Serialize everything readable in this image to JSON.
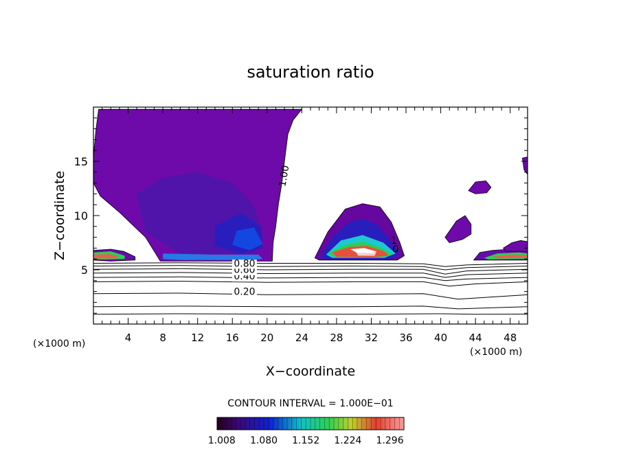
{
  "chart_data": {
    "type": "heatmap",
    "title": "saturation ratio",
    "xlabel": "X−coordinate",
    "ylabel": "Z−coordinate",
    "x_unit_left": "(×1000 m)",
    "x_unit_right": "(×1000 m)",
    "xlim": [
      0,
      50
    ],
    "ylim": [
      0,
      20
    ],
    "xticks": [
      4,
      8,
      12,
      16,
      20,
      24,
      28,
      32,
      36,
      40,
      44,
      48
    ],
    "yticks": [
      5,
      10,
      15
    ],
    "contour_interval_text": "CONTOUR INTERVAL = 1.000E−01",
    "colorbar": {
      "min": 1.0,
      "max": 1.32,
      "tick_values": [
        1.008,
        1.08,
        1.152,
        1.224,
        1.296
      ],
      "tick_labels": [
        "1.008",
        "1.080",
        "1.152",
        "1.224",
        "1.296"
      ]
    },
    "contour_labels": [
      {
        "text": "0.20",
        "x": 17.4,
        "y": 2.7
      },
      {
        "text": "0.40",
        "x": 17.4,
        "y": 4.1
      },
      {
        "text": "0.60",
        "x": 17.4,
        "y": 4.7
      },
      {
        "text": "0.80",
        "x": 17.4,
        "y": 5.3
      },
      {
        "text": "1.00",
        "x": 22.3,
        "y": 13.6
      },
      {
        "text": "1",
        "x": 34.6,
        "y": 7.4
      },
      {
        "text": "0",
        "x": 34.8,
        "y": 6.6
      }
    ],
    "line_contours": [
      [
        [
          0,
          0.9
        ],
        [
          10,
          0.95
        ],
        [
          20,
          0.92
        ],
        [
          30,
          0.9
        ],
        [
          40,
          0.95
        ],
        [
          44,
          0.9
        ],
        [
          50,
          0.92
        ]
      ],
      [
        [
          0,
          1.6
        ],
        [
          10,
          1.65
        ],
        [
          20,
          1.6
        ],
        [
          30,
          1.6
        ],
        [
          38,
          1.65
        ],
        [
          42,
          1.4
        ],
        [
          46,
          1.5
        ],
        [
          50,
          1.6
        ]
      ],
      [
        [
          0,
          2.8
        ],
        [
          10,
          2.85
        ],
        [
          20,
          2.7
        ],
        [
          30,
          2.75
        ],
        [
          38,
          2.8
        ],
        [
          42,
          2.3
        ],
        [
          46,
          2.5
        ],
        [
          50,
          2.7
        ]
      ],
      [
        [
          0,
          3.9
        ],
        [
          10,
          3.95
        ],
        [
          20,
          3.85
        ],
        [
          30,
          3.9
        ],
        [
          38,
          3.9
        ],
        [
          41,
          3.5
        ],
        [
          44,
          3.7
        ],
        [
          50,
          3.9
        ]
      ],
      [
        [
          0,
          4.3
        ],
        [
          10,
          4.35
        ],
        [
          20,
          4.25
        ],
        [
          30,
          4.3
        ],
        [
          38,
          4.3
        ],
        [
          40.5,
          4.0
        ],
        [
          43,
          4.15
        ],
        [
          50,
          4.3
        ]
      ],
      [
        [
          0,
          4.7
        ],
        [
          10,
          4.75
        ],
        [
          20,
          4.65
        ],
        [
          30,
          4.7
        ],
        [
          38,
          4.7
        ],
        [
          40.5,
          4.3
        ],
        [
          43,
          4.55
        ],
        [
          50,
          4.7
        ]
      ],
      [
        [
          0,
          5.05
        ],
        [
          10,
          5.1
        ],
        [
          20,
          5.0
        ],
        [
          30,
          5.05
        ],
        [
          38,
          5.05
        ],
        [
          40.5,
          4.6
        ],
        [
          43,
          4.9
        ],
        [
          50,
          5.05
        ]
      ],
      [
        [
          0,
          5.35
        ],
        [
          10,
          5.4
        ],
        [
          20,
          5.3
        ],
        [
          30,
          5.35
        ],
        [
          38,
          5.3
        ],
        [
          40.5,
          5.0
        ],
        [
          43,
          5.2
        ],
        [
          50,
          5.35
        ]
      ],
      [
        [
          0,
          5.6
        ],
        [
          10,
          5.65
        ],
        [
          20,
          5.6
        ],
        [
          30,
          5.6
        ],
        [
          38,
          5.55
        ],
        [
          40.5,
          5.3
        ],
        [
          43,
          5.45
        ],
        [
          50,
          5.6
        ]
      ]
    ],
    "regions": [
      {
        "level": 1.05,
        "points": [
          [
            0.6,
            19.8
          ],
          [
            24,
            19.8
          ],
          [
            23,
            18.8
          ],
          [
            22.4,
            17.5
          ],
          [
            22,
            15
          ],
          [
            21.7,
            13
          ],
          [
            21.3,
            11
          ],
          [
            21,
            9
          ],
          [
            20.7,
            7.5
          ],
          [
            20.6,
            5.8
          ],
          [
            7.7,
            5.8
          ],
          [
            6,
            8
          ],
          [
            3,
            10.3
          ],
          [
            0.8,
            11.8
          ],
          [
            0,
            13
          ],
          [
            0,
            15.5
          ],
          [
            0.3,
            18
          ]
        ]
      },
      {
        "level": 1.08,
        "points": [
          [
            5,
            12
          ],
          [
            8,
            13.5
          ],
          [
            12,
            14
          ],
          [
            16,
            13
          ],
          [
            18.5,
            11
          ],
          [
            19.5,
            8
          ],
          [
            18.5,
            6.5
          ],
          [
            10,
            6.5
          ],
          [
            6,
            8.5
          ]
        ]
      },
      {
        "level": 1.1,
        "points": [
          [
            14,
            9
          ],
          [
            17,
            10.2
          ],
          [
            19.3,
            9
          ],
          [
            19.5,
            7
          ],
          [
            17,
            6.5
          ],
          [
            14,
            7.2
          ]
        ]
      },
      {
        "level": 1.14,
        "points": [
          [
            16.5,
            8.6
          ],
          [
            18.5,
            8.9
          ],
          [
            19.5,
            7.4
          ],
          [
            18,
            6.8
          ],
          [
            16,
            7.3
          ]
        ]
      },
      {
        "level": 1.18,
        "points": [
          [
            8,
            6.5
          ],
          [
            14,
            6.4
          ],
          [
            19,
            6.4
          ],
          [
            19.5,
            6.0
          ],
          [
            18,
            5.9
          ],
          [
            10,
            5.9
          ],
          [
            8,
            6.0
          ]
        ]
      },
      {
        "level": 1.06,
        "points": [
          [
            0,
            6.8
          ],
          [
            2,
            6.9
          ],
          [
            3.5,
            6.7
          ],
          [
            4.8,
            6.2
          ],
          [
            4.8,
            5.9
          ],
          [
            2,
            5.8
          ],
          [
            0,
            5.9
          ]
        ]
      },
      {
        "level": 1.2,
        "points": [
          [
            0,
            6.6
          ],
          [
            2,
            6.7
          ],
          [
            3.6,
            6.3
          ],
          [
            3.6,
            6.0
          ],
          [
            1,
            5.95
          ],
          [
            0,
            6.0
          ]
        ]
      },
      {
        "level": 1.28,
        "points": [
          [
            0,
            6.4
          ],
          [
            1.8,
            6.45
          ],
          [
            2.8,
            6.25
          ],
          [
            2.6,
            6.05
          ],
          [
            0,
            6.05
          ]
        ]
      },
      {
        "level": 1.04,
        "points": [
          [
            25.5,
            6.1
          ],
          [
            27,
            8.5
          ],
          [
            29,
            10.6
          ],
          [
            31,
            11.1
          ],
          [
            33,
            10.8
          ],
          [
            34.3,
            9.4
          ],
          [
            35.3,
            7.5
          ],
          [
            35.8,
            6.3
          ],
          [
            35,
            5.9
          ],
          [
            26,
            5.9
          ]
        ]
      },
      {
        "level": 1.1,
        "points": [
          [
            26.2,
            6.2
          ],
          [
            27.5,
            8.0
          ],
          [
            29.5,
            9.4
          ],
          [
            31,
            9.7
          ],
          [
            32.6,
            9.2
          ],
          [
            34.2,
            7.7
          ],
          [
            35.2,
            6.5
          ],
          [
            34.5,
            6.0
          ],
          [
            26.5,
            6.0
          ]
        ]
      },
      {
        "level": 1.16,
        "points": [
          [
            26.8,
            6.4
          ],
          [
            28.5,
            7.7
          ],
          [
            31,
            8.2
          ],
          [
            33.4,
            7.5
          ],
          [
            34.8,
            6.5
          ],
          [
            33.5,
            6.1
          ],
          [
            27.5,
            6.1
          ]
        ]
      },
      {
        "level": 1.2,
        "points": [
          [
            27,
            6.5
          ],
          [
            29,
            7.3
          ],
          [
            31,
            7.6
          ],
          [
            33,
            7.1
          ],
          [
            34.5,
            6.4
          ],
          [
            33,
            6.15
          ],
          [
            28,
            6.15
          ]
        ]
      },
      {
        "level": 1.27,
        "points": [
          [
            27.5,
            6.6
          ],
          [
            29.5,
            7.1
          ],
          [
            31.5,
            7.2
          ],
          [
            33.5,
            6.7
          ],
          [
            34,
            6.3
          ],
          [
            32,
            6.15
          ],
          [
            28,
            6.2
          ]
        ]
      },
      {
        "level": 1.32,
        "points": [
          [
            30,
            6.9
          ],
          [
            31.2,
            7.0
          ],
          [
            32.6,
            6.7
          ],
          [
            32.4,
            6.3
          ],
          [
            30.5,
            6.3
          ]
        ]
      },
      {
        "level": 1.06,
        "points": [
          [
            43.8,
            5.9
          ],
          [
            44.5,
            6.6
          ],
          [
            46,
            6.8
          ],
          [
            48,
            6.9
          ],
          [
            50,
            6.8
          ],
          [
            50,
            5.9
          ]
        ]
      },
      {
        "level": 1.2,
        "points": [
          [
            45,
            6.1
          ],
          [
            46.5,
            6.5
          ],
          [
            49,
            6.6
          ],
          [
            50,
            6.5
          ],
          [
            50,
            6.0
          ],
          [
            45.5,
            5.95
          ]
        ]
      },
      {
        "level": 1.28,
        "points": [
          [
            46,
            6.2
          ],
          [
            48,
            6.4
          ],
          [
            50,
            6.35
          ],
          [
            50,
            6.1
          ],
          [
            46.5,
            6.05
          ]
        ]
      },
      {
        "level": 1.05,
        "points": [
          [
            47.2,
            7.0
          ],
          [
            48.2,
            7.5
          ],
          [
            49.2,
            7.7
          ],
          [
            50,
            7.6
          ],
          [
            50,
            6.7
          ],
          [
            47.5,
            6.7
          ]
        ]
      },
      {
        "level": 1.05,
        "points": [
          [
            40.5,
            8.0
          ],
          [
            41.8,
            9.5
          ],
          [
            42.8,
            10.0
          ],
          [
            43.5,
            9.2
          ],
          [
            43.5,
            8.3
          ],
          [
            42.5,
            7.8
          ],
          [
            41,
            7.5
          ]
        ]
      },
      {
        "level": 1.05,
        "points": [
          [
            43.2,
            12.3
          ],
          [
            44,
            13.1
          ],
          [
            45.2,
            13.2
          ],
          [
            45.8,
            12.6
          ],
          [
            45.3,
            12.1
          ],
          [
            44,
            12.0
          ]
        ]
      },
      {
        "level": 1.05,
        "points": [
          [
            49.4,
            15.3
          ],
          [
            50,
            15.4
          ],
          [
            50,
            13.8
          ],
          [
            49.6,
            14.2
          ]
        ]
      }
    ],
    "white_patch": [
      [
        29.6,
        6.9
      ],
      [
        31.2,
        7.0
      ],
      [
        32.4,
        6.7
      ],
      [
        32.2,
        6.55
      ],
      [
        30.4,
        6.55
      ]
    ]
  }
}
